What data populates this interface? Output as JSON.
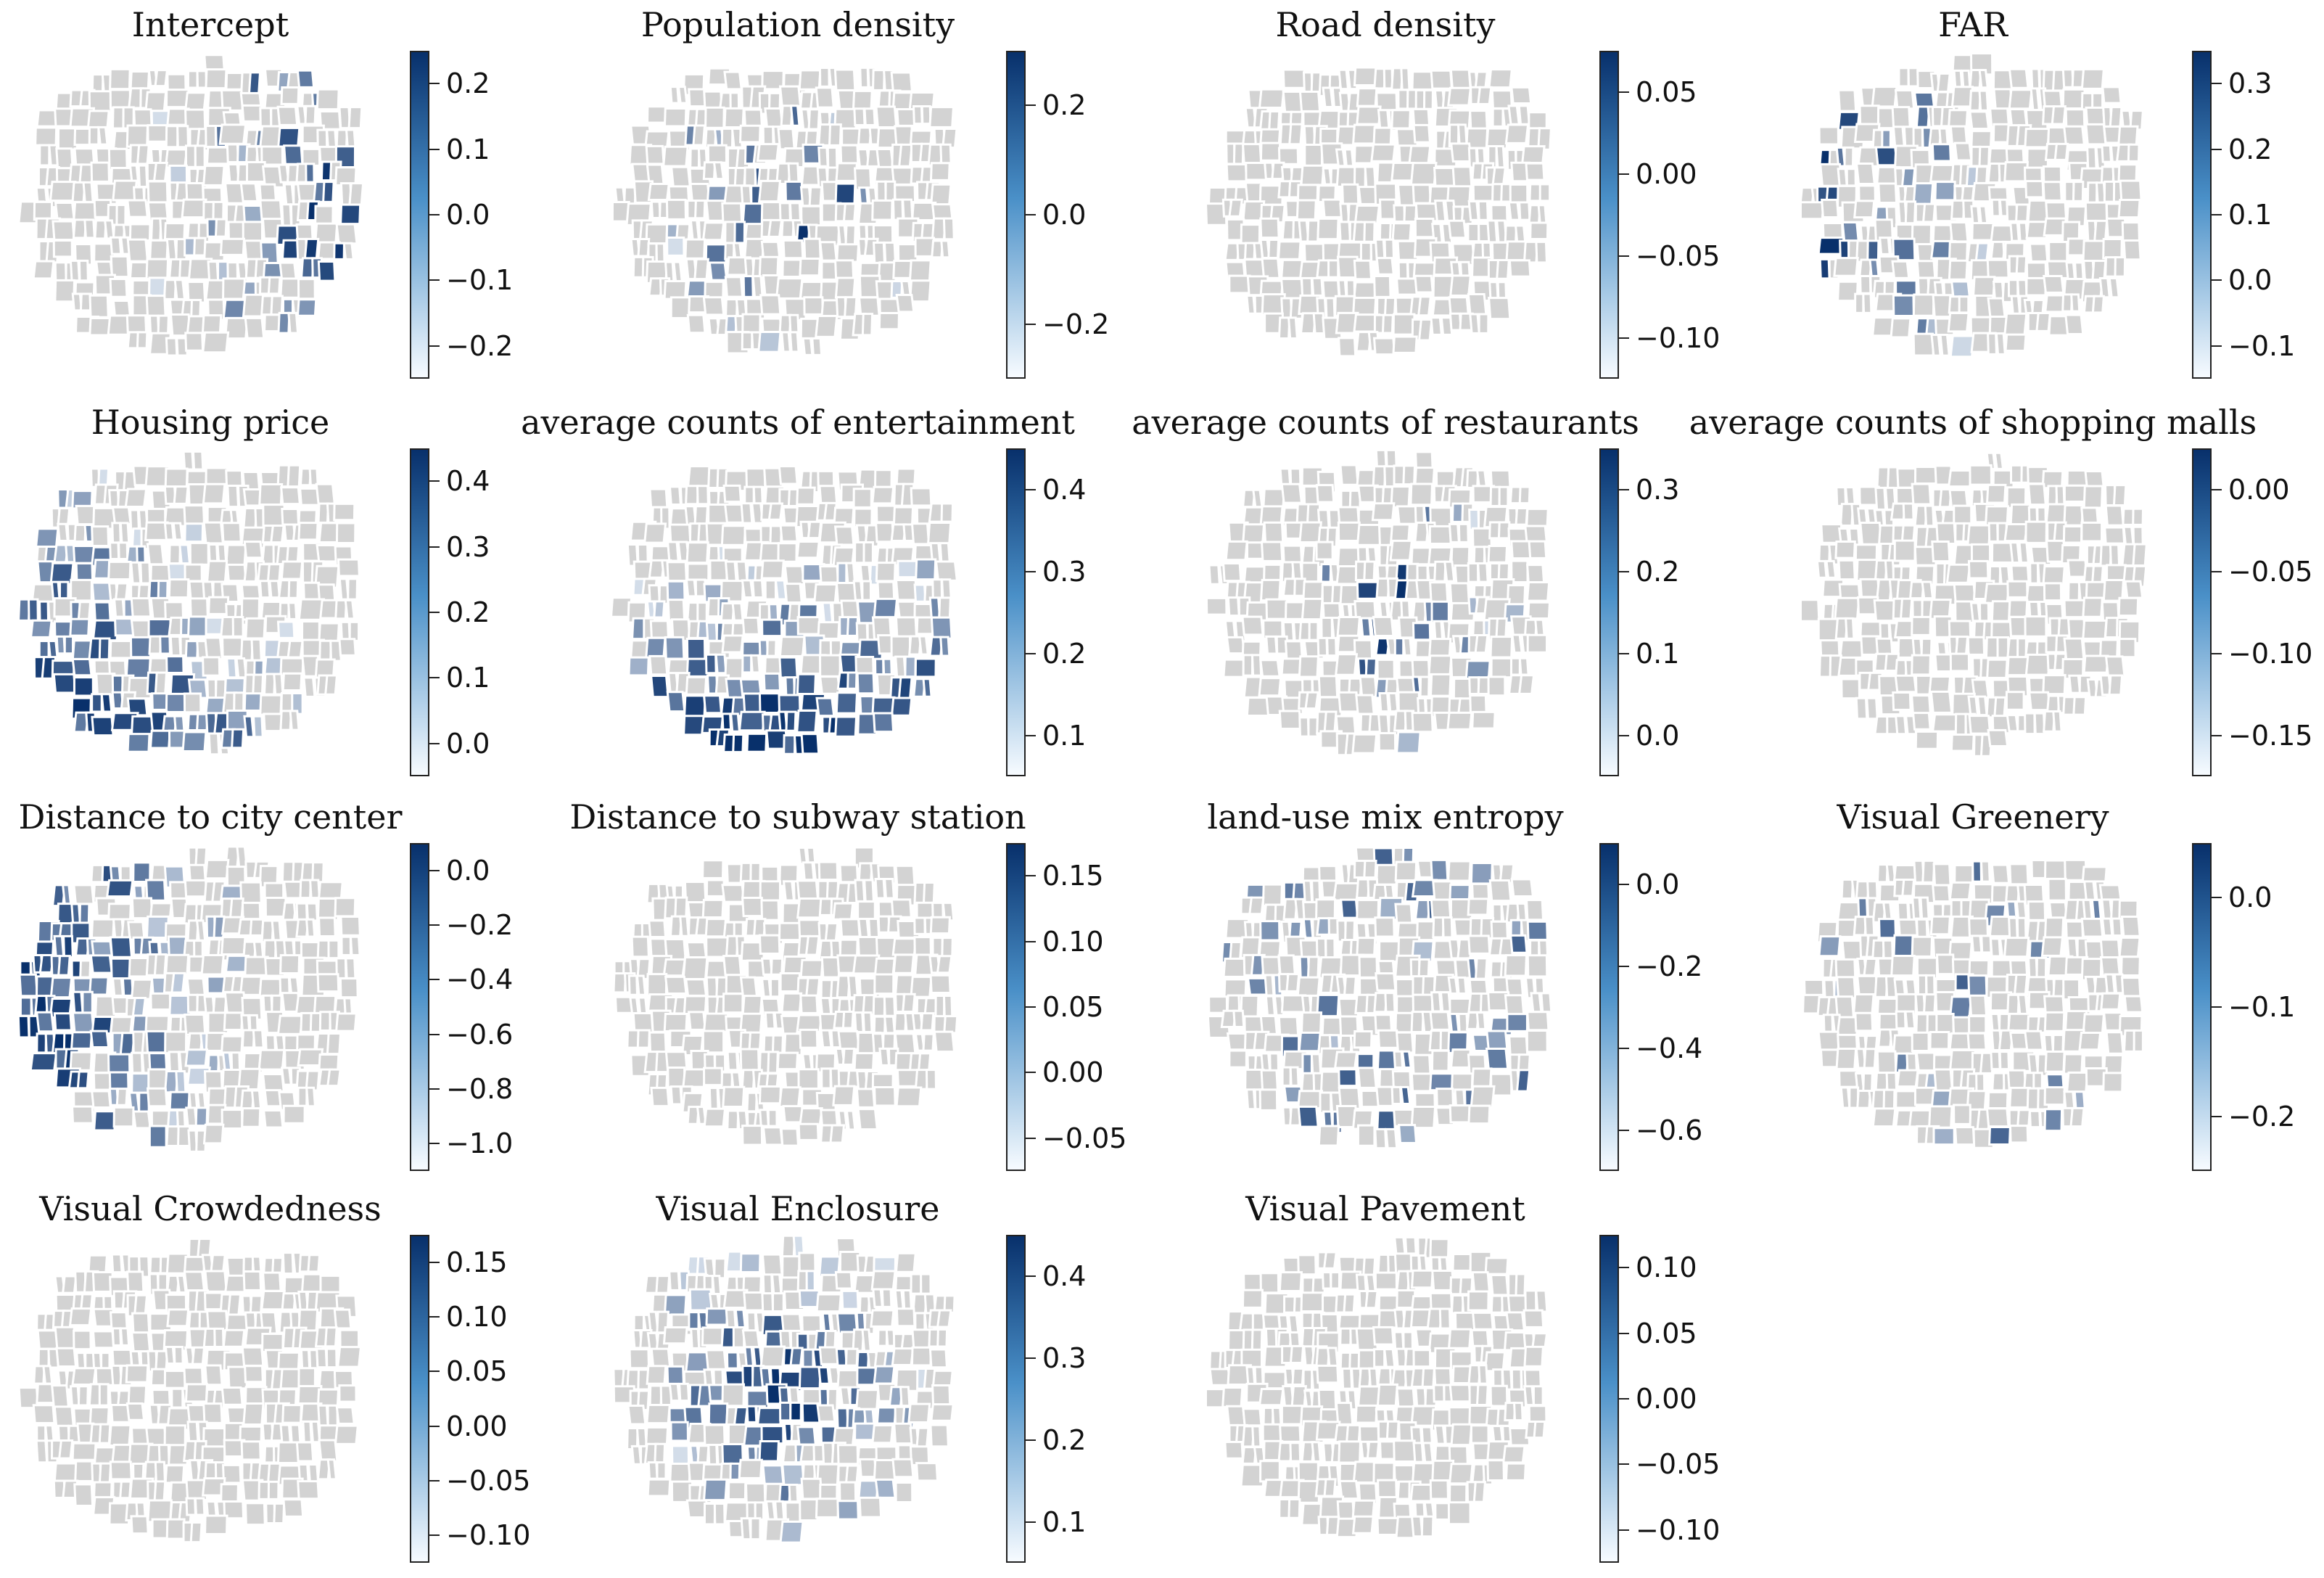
{
  "figure": {
    "palette": {
      "no_data": "#d3d3d3",
      "edge": "#ffffff",
      "cmap_low": "#f7fbff",
      "cmap_high": "#08306b"
    }
  },
  "panels": [
    {
      "title": "Intercept",
      "ticks": [
        "0.2",
        "0.1",
        "0.0",
        "−0.1",
        "−0.2"
      ],
      "highlight_fraction": 0.2,
      "highlight_zone": "east",
      "seed": 11
    },
    {
      "title": "Population density",
      "ticks": [
        "0.2",
        "0.0",
        "−0.2"
      ],
      "highlight_fraction": 0.09,
      "highlight_zone": "center",
      "seed": 23
    },
    {
      "title": "Road density",
      "ticks": [
        "0.05",
        "0.00",
        "−0.05",
        "−0.10"
      ],
      "highlight_fraction": 0.0,
      "highlight_zone": "none",
      "seed": 31
    },
    {
      "title": "FAR",
      "ticks": [
        "0.3",
        "0.2",
        "0.1",
        "0.0",
        "−0.1"
      ],
      "highlight_fraction": 0.2,
      "highlight_zone": "west",
      "seed": 47
    },
    {
      "title": "Housing price",
      "ticks": [
        "0.4",
        "0.3",
        "0.2",
        "0.1",
        "0.0"
      ],
      "highlight_fraction": 0.55,
      "highlight_zone": "southwest",
      "seed": 53
    },
    {
      "title": "average counts of entertainment",
      "ticks": [
        "0.4",
        "0.3",
        "0.2",
        "0.1"
      ],
      "highlight_fraction": 0.62,
      "highlight_zone": "south",
      "seed": 61
    },
    {
      "title": "average counts of restaurants",
      "ticks": [
        "0.3",
        "0.2",
        "0.1",
        "0.0"
      ],
      "highlight_fraction": 0.11,
      "highlight_zone": "center",
      "seed": 71
    },
    {
      "title": "average counts of shopping malls",
      "ticks": [
        "0.00",
        "−0.05",
        "−0.10",
        "−0.15"
      ],
      "highlight_fraction": 0.0,
      "highlight_zone": "none",
      "seed": 83
    },
    {
      "title": "Distance to city center",
      "ticks": [
        "0.0",
        "−0.2",
        "−0.4",
        "−0.6",
        "−0.8",
        "−1.0"
      ],
      "highlight_fraction": 0.55,
      "highlight_zone": "west",
      "seed": 97
    },
    {
      "title": "Distance to subway station",
      "ticks": [
        "0.15",
        "0.10",
        "0.05",
        "0.00",
        "−0.05"
      ],
      "highlight_fraction": 0.0,
      "highlight_zone": "none",
      "seed": 101
    },
    {
      "title": "land-use mix entropy",
      "ticks": [
        "0.0",
        "−0.2",
        "−0.4",
        "−0.6"
      ],
      "highlight_fraction": 0.2,
      "highlight_zone": "scatter",
      "seed": 113
    },
    {
      "title": "Visual Greenery",
      "ticks": [
        "0.0",
        "−0.1",
        "−0.2"
      ],
      "highlight_fraction": 0.08,
      "highlight_zone": "scatter",
      "seed": 127
    },
    {
      "title": "Visual Crowdedness",
      "ticks": [
        "0.15",
        "0.10",
        "0.05",
        "0.00",
        "−0.05",
        "−0.10"
      ],
      "highlight_fraction": 0.0,
      "highlight_zone": "none",
      "seed": 131
    },
    {
      "title": "Visual  Enclosure",
      "ticks": [
        "0.4",
        "0.3",
        "0.2",
        "0.1"
      ],
      "highlight_fraction": 0.5,
      "highlight_zone": "center",
      "seed": 139
    },
    {
      "title": "Visual Pavement",
      "ticks": [
        "0.10",
        "0.05",
        "0.00",
        "−0.05",
        "−0.10"
      ],
      "highlight_fraction": 0.0,
      "highlight_zone": "none",
      "seed": 149
    }
  ]
}
